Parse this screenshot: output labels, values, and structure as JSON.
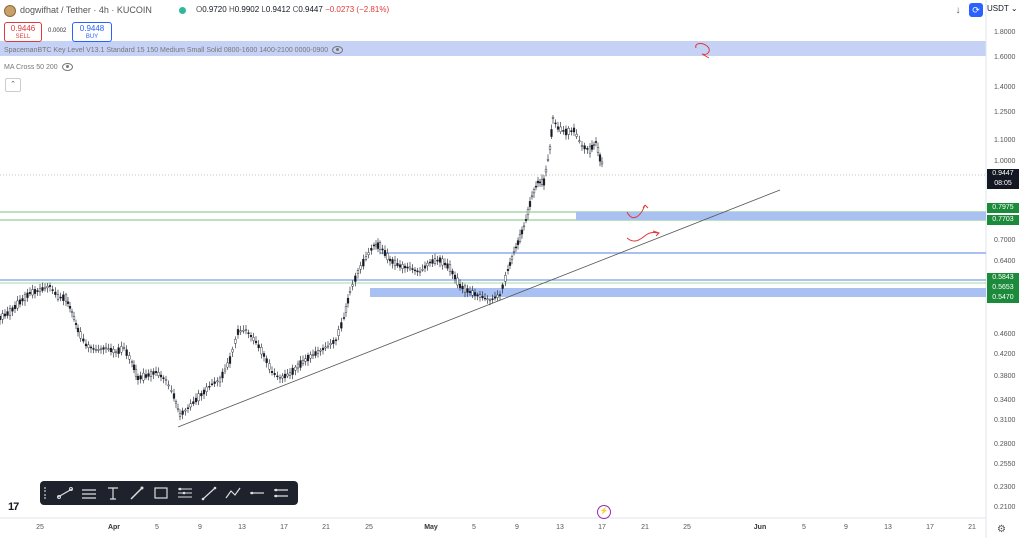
{
  "header": {
    "symbol": "dogwifhat / Tether · 4h · KUCOIN",
    "ohlc": {
      "o_label": "O",
      "o": "0.9720",
      "h_label": "H",
      "h": "0.9902",
      "l_label": "L",
      "l": "0.9412",
      "c_label": "C",
      "c": "0.9447",
      "change": "−0.0273 (−2.81%)"
    },
    "sell": {
      "price": "0.9446",
      "label": "SELL"
    },
    "buy": {
      "price": "0.9448",
      "label": "BUY"
    },
    "spread": "0.0002",
    "currency": "USDT",
    "currency_caret": "⌄",
    "download_glyph": "↓",
    "alert_glyph": "⟳",
    "collapse_glyph": "⌃"
  },
  "indicators": [
    {
      "name": "SpacemanBTC Key Level V13.1 Standard 15 150 Medium Small Solid 0800-1600 1400-2100 0000-0900"
    },
    {
      "name": "MA Cross 50 200"
    }
  ],
  "price_axis": {
    "labels": [
      "1.8000",
      "1.6000",
      "1.4000",
      "1.2500",
      "1.1000",
      "1.0000",
      "0.7000",
      "0.6400",
      "0.4600",
      "0.4200",
      "0.3800",
      "0.3400",
      "0.3100",
      "0.2800",
      "0.2550",
      "0.2300",
      "0.2100"
    ],
    "current_price": "0.9447",
    "countdown": "08:05",
    "level_tags": [
      {
        "value": "0.7975",
        "color": "#1b8a3a"
      },
      {
        "value": "0.7703",
        "color": "#1b8a3a"
      },
      {
        "value": "0.5843",
        "color": "#1b8a3a"
      },
      {
        "value": "0.5653",
        "color": "#1b8a3a"
      },
      {
        "value": "0.5470",
        "color": "#1b8a3a"
      }
    ]
  },
  "time_axis": {
    "labels": [
      {
        "text": "25",
        "bold": false
      },
      {
        "text": "Apr",
        "bold": true
      },
      {
        "text": "5",
        "bold": false
      },
      {
        "text": "9",
        "bold": false
      },
      {
        "text": "13",
        "bold": false
      },
      {
        "text": "17",
        "bold": false
      },
      {
        "text": "21",
        "bold": false
      },
      {
        "text": "25",
        "bold": false
      },
      {
        "text": "May",
        "bold": true
      },
      {
        "text": "5",
        "bold": false
      },
      {
        "text": "9",
        "bold": false
      },
      {
        "text": "13",
        "bold": false
      },
      {
        "text": "17",
        "bold": false
      },
      {
        "text": "21",
        "bold": false
      },
      {
        "text": "25",
        "bold": false
      },
      {
        "text": "Jun",
        "bold": true
      },
      {
        "text": "5",
        "bold": false
      },
      {
        "text": "9",
        "bold": false
      },
      {
        "text": "13",
        "bold": false
      },
      {
        "text": "17",
        "bold": false
      },
      {
        "text": "21",
        "bold": false
      }
    ]
  },
  "toolbar": {
    "tools": [
      "trend-line-tool",
      "parallel-channel-tool",
      "text-tool",
      "brush-tool",
      "rectangle-tool",
      "fib-tool",
      "line-tool",
      "path-tool",
      "horizontal-line-tool",
      "long-position-tool"
    ]
  },
  "footer": {
    "logo": "17",
    "settings_glyph": "⚙",
    "event_glyph": "⚡"
  },
  "colors": {
    "accent": "#2962ff",
    "sell": "#e0393a",
    "level_green": "#1b8a3a",
    "zone_blue": "#a9c0f2",
    "candle": "#131722",
    "annotation": "#e0393a"
  }
}
